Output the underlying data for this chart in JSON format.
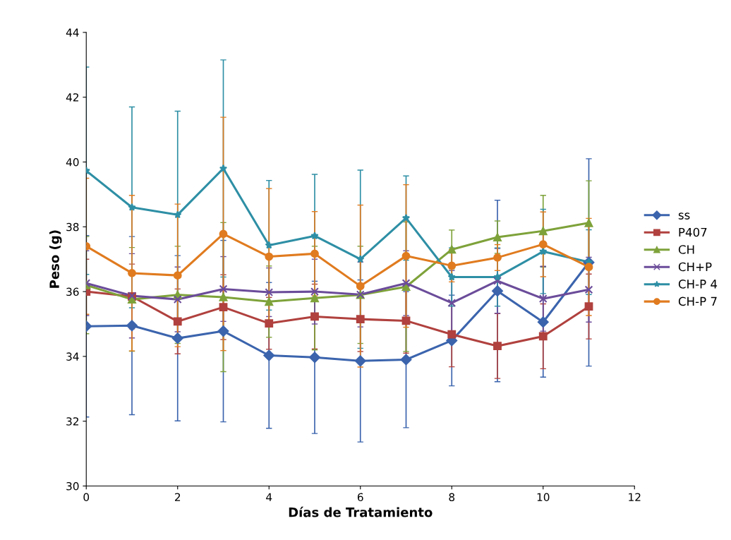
{
  "chart_data": {
    "type": "line",
    "xlabel": "Días de Tratamiento",
    "ylabel": "Peso (g)",
    "xlim": [
      0,
      12
    ],
    "xticks": [
      0,
      2,
      4,
      6,
      8,
      10,
      12
    ],
    "ylim": [
      30,
      44
    ],
    "yticks": [
      30,
      32,
      34,
      36,
      38,
      40,
      42,
      44
    ],
    "grid": false,
    "legend": "right",
    "x": [
      0,
      1,
      2,
      3,
      4,
      5,
      6,
      7,
      8,
      9,
      10,
      11
    ],
    "series": [
      {
        "name": "ss",
        "color": "#3b64ad",
        "marker": "diamond",
        "values": [
          34.93,
          34.95,
          34.56,
          34.78,
          34.03,
          33.97,
          33.86,
          33.9,
          34.49,
          36.02,
          35.06,
          36.9
        ],
        "errors": [
          2.8,
          2.75,
          2.55,
          2.8,
          2.25,
          2.35,
          2.5,
          2.1,
          1.4,
          2.8,
          1.7,
          3.2
        ]
      },
      {
        "name": "P407",
        "color": "#b0413e",
        "marker": "square",
        "values": [
          36.0,
          35.85,
          35.08,
          35.52,
          35.02,
          35.23,
          35.15,
          35.1,
          34.68,
          34.32,
          34.62,
          35.54
        ],
        "errors": [
          1.0,
          1.0,
          1.0,
          1.0,
          0.8,
          1.0,
          1.0,
          1.0,
          1.0,
          1.0,
          1.0,
          1.0
        ]
      },
      {
        "name": "CH",
        "color": "#7ea23a",
        "marker": "triangle",
        "values": [
          36.2,
          35.76,
          35.9,
          35.83,
          35.69,
          35.8,
          35.9,
          36.15,
          37.3,
          37.68,
          37.87,
          38.12
        ],
        "errors": [
          1.5,
          1.6,
          1.5,
          2.3,
          1.1,
          1.6,
          1.5,
          2.0,
          0.6,
          0.5,
          1.1,
          1.3
        ]
      },
      {
        "name": "CH+P",
        "color": "#6b4c9a",
        "marker": "cross",
        "values": [
          36.26,
          35.87,
          35.76,
          36.08,
          35.98,
          36.0,
          35.91,
          36.26,
          35.65,
          36.33,
          35.78,
          36.06
        ],
        "errors": [
          1.0,
          1.3,
          1.0,
          1.0,
          0.75,
          1.0,
          1.0,
          1.0,
          1.0,
          1.0,
          1.0,
          1.0
        ]
      },
      {
        "name": "CH-P 4",
        "color": "#2e8fa5",
        "marker": "star",
        "values": [
          39.73,
          38.6,
          38.37,
          39.8,
          37.43,
          37.72,
          37.0,
          38.27,
          36.45,
          36.45,
          37.24,
          36.91
        ],
        "errors": [
          3.2,
          3.1,
          3.2,
          3.35,
          2.0,
          1.9,
          2.75,
          1.3,
          0.9,
          0.9,
          1.3,
          1.0
        ]
      },
      {
        "name": "CH-P 7",
        "color": "#e07b1f",
        "marker": "circle",
        "values": [
          37.4,
          36.57,
          36.5,
          37.78,
          37.08,
          37.17,
          36.17,
          37.1,
          36.8,
          37.05,
          37.46,
          36.76
        ],
        "errors": [
          2.1,
          2.4,
          2.2,
          3.6,
          2.1,
          1.3,
          2.5,
          2.2,
          0.5,
          0.4,
          1.0,
          1.5
        ]
      }
    ]
  }
}
